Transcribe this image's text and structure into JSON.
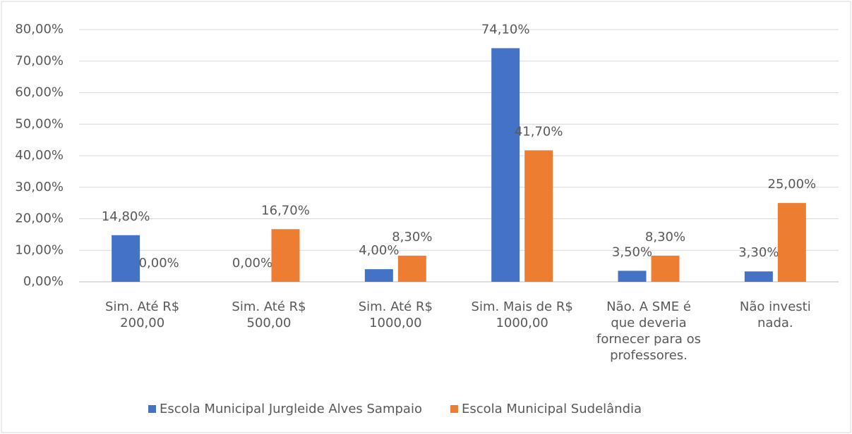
{
  "chart_data": {
    "type": "bar",
    "categories": [
      [
        "Sim. Até R$",
        "200,00"
      ],
      [
        "Sim. Até R$",
        "500,00"
      ],
      [
        "Sim. Até R$",
        "1000,00"
      ],
      [
        "Sim. Mais de R$",
        "1000,00"
      ],
      [
        "Não. A SME é",
        "que deveria",
        "fornecer para os",
        "professores."
      ],
      [
        "Não investi",
        "nada."
      ]
    ],
    "series": [
      {
        "name": "Escola Municipal Jurgleide Alves Sampaio",
        "color": "#4472c4",
        "values": [
          14.8,
          0,
          4,
          74.1,
          3.5,
          3.3
        ],
        "value_labels": [
          "14,80%",
          "0,00%",
          "4,00%",
          "74,10%",
          "3,50%",
          "3,30%"
        ]
      },
      {
        "name": "Escola Municipal Sudelândia",
        "color": "#ed7d31",
        "values": [
          0,
          16.7,
          8.3,
          41.7,
          8.3,
          25
        ],
        "value_labels": [
          "0,00%",
          "16,70%",
          "8,30%",
          "41,70%",
          "8,30%",
          "25,00%"
        ]
      }
    ],
    "ylim": [
      0,
      80
    ],
    "yticks": [
      {
        "value": 0,
        "label": "0,00%"
      },
      {
        "value": 10,
        "label": "10,00%"
      },
      {
        "value": 20,
        "label": "20,00%"
      },
      {
        "value": 30,
        "label": "30,00%"
      },
      {
        "value": 40,
        "label": "40,00%"
      },
      {
        "value": 50,
        "label": "50,00%"
      },
      {
        "value": 60,
        "label": "60,00%"
      },
      {
        "value": 70,
        "label": "70,00%"
      },
      {
        "value": 80,
        "label": "80,00%"
      }
    ],
    "grid": true,
    "legend": "bottom"
  }
}
